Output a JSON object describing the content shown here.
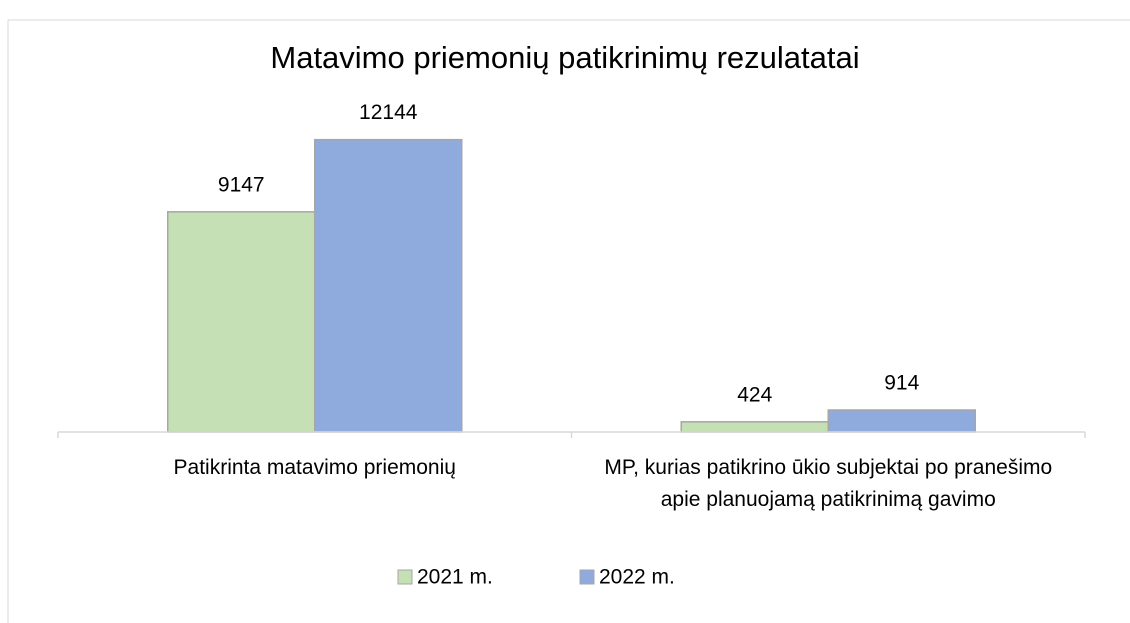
{
  "chart_data": {
    "type": "bar",
    "title": "Matavimo priemonių patikrinimų rezulatatai",
    "categories": [
      "Patikrinta matavimo priemonių",
      "MP, kurias patikrino ūkio subjektai po pranešimo apie planuojamą patikrinimą gavimo"
    ],
    "series": [
      {
        "name": "2021 m.",
        "color": "#c5e0b4",
        "values": [
          9147,
          424
        ]
      },
      {
        "name": "2022 m.",
        "color": "#8faadc",
        "values": [
          12144,
          914
        ]
      }
    ],
    "ylim": [
      0,
      14000
    ],
    "legend": "bottom"
  }
}
